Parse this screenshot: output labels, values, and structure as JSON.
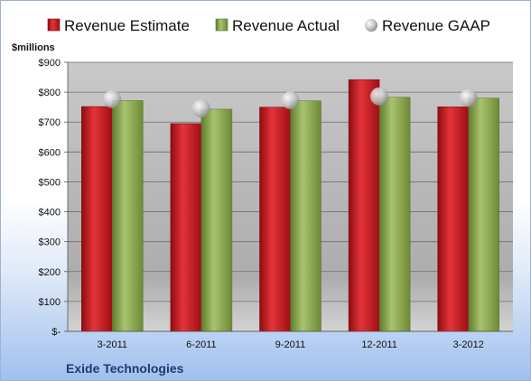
{
  "company": "Exide Technologies",
  "colors": {
    "estimate": "#c8121a",
    "actual": "#8cab4c",
    "gaap": "#b8b8b8",
    "plot_top": "#c9c9c9",
    "plot_mid": "#adadad",
    "plot_bottom": "#d3d3d3"
  },
  "chart_data": {
    "type": "bar",
    "ylabel": "$millions",
    "ylim": [
      0,
      900
    ],
    "grid": true,
    "legend_position": "top",
    "categories": [
      "3-2011",
      "6-2011",
      "9-2011",
      "12-2011",
      "3-2012"
    ],
    "y_ticks": [
      "$-",
      "$100",
      "$200",
      "$300",
      "$400",
      "$500",
      "$600",
      "$700",
      "$800",
      "$900"
    ],
    "series": [
      {
        "name": "Revenue Estimate",
        "kind": "bar",
        "values": [
          752,
          695,
          750,
          842,
          751
        ]
      },
      {
        "name": "Revenue Actual",
        "kind": "bar",
        "values": [
          772,
          743,
          771,
          783,
          780
        ]
      },
      {
        "name": "Revenue GAAP",
        "kind": "marker",
        "values": [
          777,
          746,
          773,
          786,
          781
        ]
      }
    ]
  }
}
